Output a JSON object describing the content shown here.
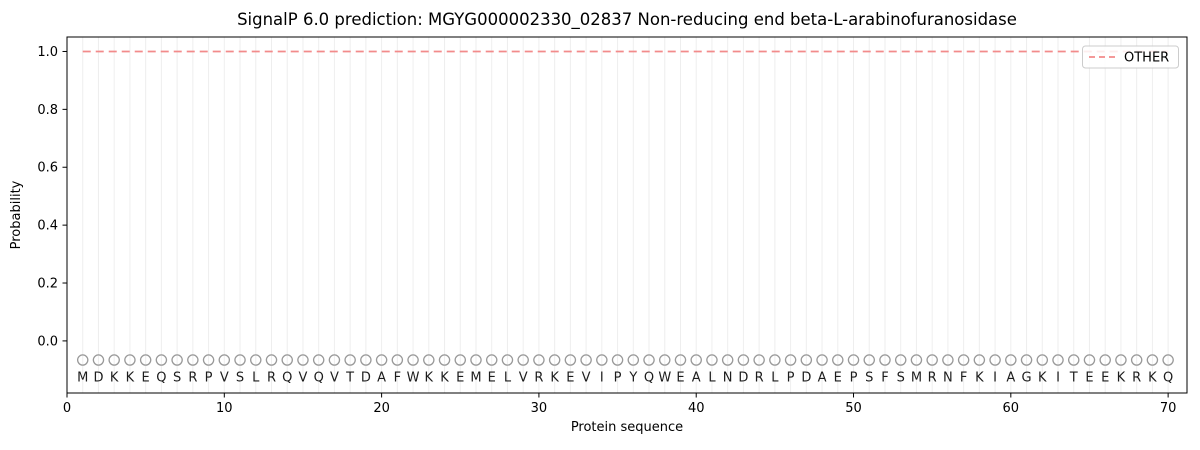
{
  "figure": {
    "title": "SignalP 6.0 prediction: MGYG000002330_02837 Non-reducing end beta-L-arabinofuranosidase",
    "xlabel": "Protein sequence",
    "ylabel": "Probability",
    "background": "#ffffff"
  },
  "legend": {
    "label": "OTHER",
    "position": "upper-right",
    "border_color": "#cccccc",
    "line_color": "#f28b8b"
  },
  "chart_data": {
    "type": "line",
    "title": "SignalP 6.0 prediction: MGYG000002330_02837 Non-reducing end beta-L-arabinofuranosidase",
    "xlabel": "Protein sequence",
    "ylabel": "Probability",
    "xlim": [
      0,
      71.2
    ],
    "ylim": [
      -0.18,
      1.05
    ],
    "x_ticks": [
      0,
      10,
      20,
      30,
      40,
      50,
      60,
      70
    ],
    "y_ticks": [
      "0.0",
      "0.2",
      "0.4",
      "0.6",
      "0.8",
      "1.0"
    ],
    "grid": "vertical gridline at every residue position 1-70",
    "legend_position": "upper-right",
    "sequence": "MDKKEQSRPVSLRQVQVTDAFWKKEMELVRKEVIPYQWEALNDRLPDAEPSFSMRNFKIAGKITEEKRKQ",
    "series": [
      {
        "name": "OTHER",
        "style": "dashed",
        "color": "#f28b8b",
        "x_start": 1,
        "x_end": 70,
        "values": [
          1.0,
          1.0,
          1.0,
          1.0,
          1.0,
          1.0,
          1.0,
          1.0,
          1.0,
          1.0,
          1.0,
          1.0,
          1.0,
          1.0,
          1.0,
          1.0,
          1.0,
          1.0,
          1.0,
          1.0,
          1.0,
          1.0,
          1.0,
          1.0,
          1.0,
          1.0,
          1.0,
          1.0,
          1.0,
          1.0,
          1.0,
          1.0,
          1.0,
          1.0,
          1.0,
          1.0,
          1.0,
          1.0,
          1.0,
          1.0,
          1.0,
          1.0,
          1.0,
          1.0,
          1.0,
          1.0,
          1.0,
          1.0,
          1.0,
          1.0,
          1.0,
          1.0,
          1.0,
          1.0,
          1.0,
          1.0,
          1.0,
          1.0,
          1.0,
          1.0,
          1.0,
          1.0,
          1.0,
          1.0,
          1.0,
          1.0,
          1.0,
          1.0,
          1.0,
          1.0
        ]
      }
    ],
    "markers": {
      "shape": "open-circle",
      "color": "#999999",
      "y_value": -0.066
    },
    "letters_y_value": -0.125,
    "colors": {
      "grid": "#eeeeee",
      "spine": "#000000",
      "text": "#000000"
    }
  }
}
